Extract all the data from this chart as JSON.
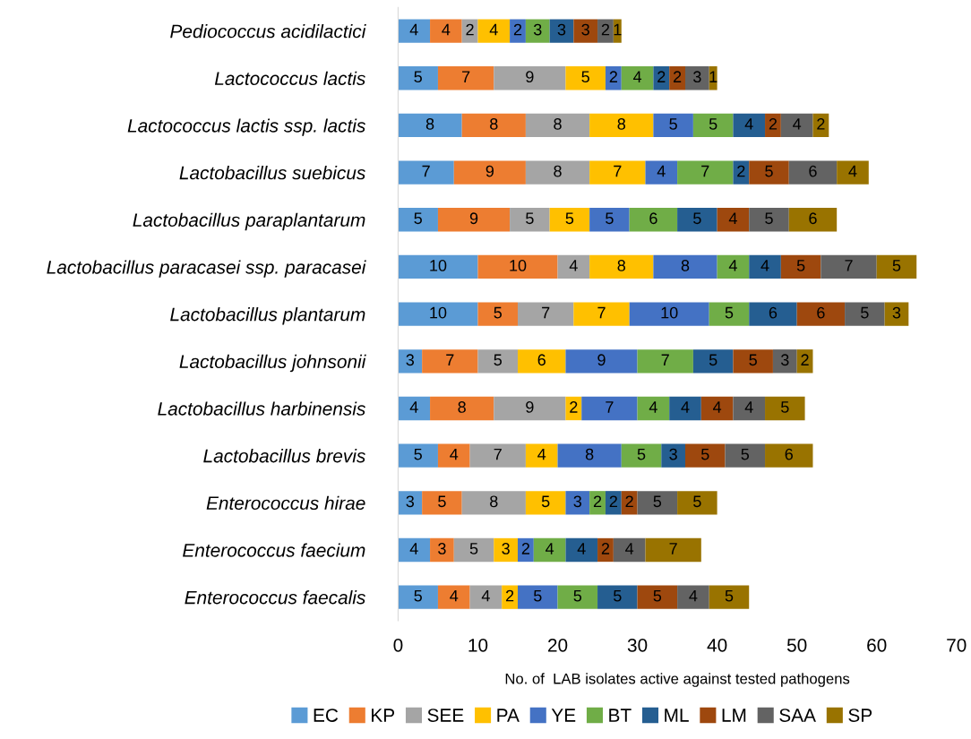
{
  "chart_data": {
    "type": "bar",
    "orientation": "horizontal",
    "stacked": true,
    "data_labels": true,
    "grid": false,
    "legend": "bottom",
    "xlabel": "No. of  LAB isolates active against tested pathogens",
    "xlim": [
      0,
      70
    ],
    "xticks": [
      0,
      10,
      20,
      30,
      40,
      50,
      60,
      70
    ],
    "categories": [
      "Pediococcus acidilactici",
      "Lactococcus lactis",
      "Lactococcus lactis ssp. lactis",
      "Lactobacillus suebicus",
      "Lactobacillus paraplantarum",
      "Lactobacillus paracasei ssp. paracasei",
      "Lactobacillus plantarum",
      "Lactobacillus johnsonii",
      "Lactobacillus harbinensis",
      "Lactobacillus brevis",
      "Enterococcus hirae",
      "Enterococcus faecium",
      "Enterococcus faecalis"
    ],
    "series": [
      {
        "name": "EC",
        "color": "#5b9bd5",
        "values": [
          4,
          5,
          8,
          7,
          5,
          10,
          10,
          3,
          4,
          5,
          3,
          4,
          5
        ]
      },
      {
        "name": "KP",
        "color": "#ed7d31",
        "values": [
          4,
          7,
          8,
          9,
          9,
          10,
          5,
          7,
          8,
          4,
          5,
          3,
          4
        ]
      },
      {
        "name": "SEE",
        "color": "#a5a5a5",
        "values": [
          2,
          9,
          8,
          8,
          5,
          4,
          7,
          5,
          9,
          7,
          8,
          5,
          4
        ]
      },
      {
        "name": "PA",
        "color": "#ffc000",
        "values": [
          4,
          5,
          8,
          7,
          5,
          8,
          7,
          6,
          2,
          4,
          5,
          3,
          2
        ]
      },
      {
        "name": "YE",
        "color": "#4472c4",
        "values": [
          2,
          2,
          5,
          4,
          5,
          8,
          10,
          9,
          7,
          8,
          3,
          2,
          5
        ]
      },
      {
        "name": "BT",
        "color": "#70ad47",
        "values": [
          3,
          4,
          5,
          7,
          6,
          4,
          5,
          7,
          4,
          5,
          2,
          4,
          5
        ]
      },
      {
        "name": "ML",
        "color": "#255e91",
        "values": [
          3,
          2,
          4,
          2,
          5,
          4,
          6,
          5,
          4,
          3,
          2,
          4,
          5
        ]
      },
      {
        "name": "LM",
        "color": "#9e480e",
        "values": [
          3,
          2,
          2,
          5,
          4,
          5,
          6,
          5,
          4,
          5,
          2,
          2,
          5
        ]
      },
      {
        "name": "SAA",
        "color": "#636363",
        "values": [
          2,
          3,
          4,
          6,
          5,
          7,
          5,
          3,
          4,
          5,
          5,
          4,
          4
        ]
      },
      {
        "name": "SP",
        "color": "#997300",
        "values": [
          1,
          1,
          2,
          4,
          6,
          5,
          3,
          2,
          5,
          6,
          5,
          7,
          5
        ]
      }
    ]
  }
}
